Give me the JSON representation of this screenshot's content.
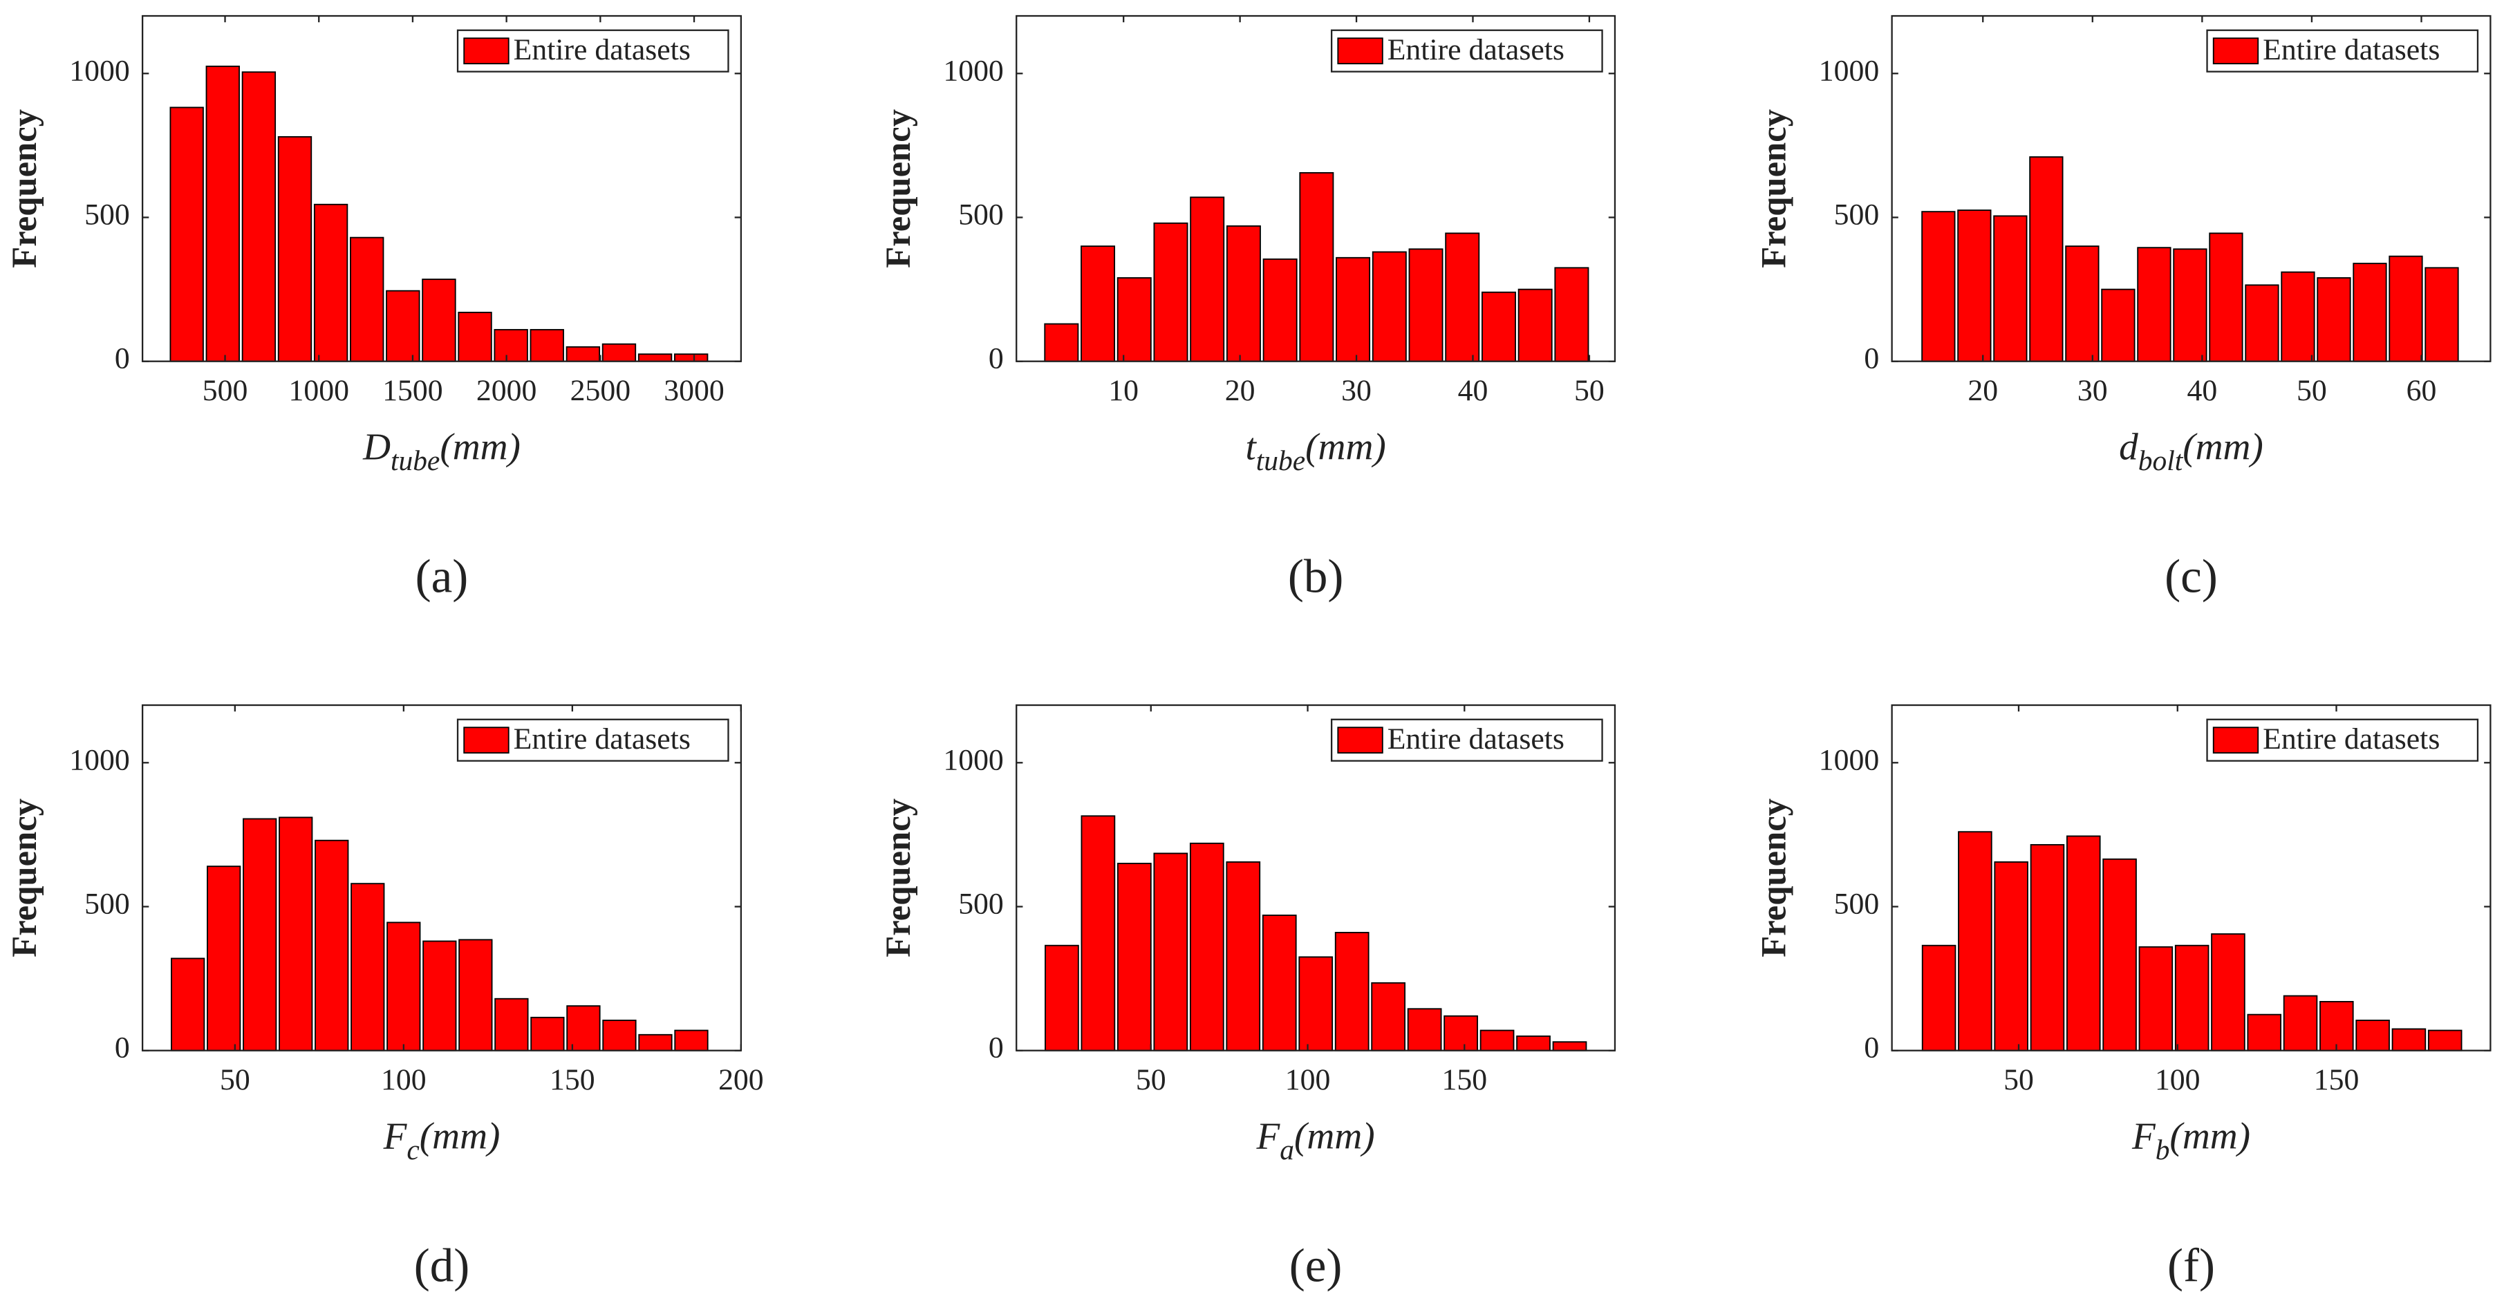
{
  "chart_data": [
    {
      "type": "histogram",
      "panel": "(a)",
      "ylabel": "Frequency",
      "xlabel": {
        "symbol": "D",
        "subscript": "tube",
        "unit": "(mm)"
      },
      "bins": [
        200,
        392,
        584,
        776,
        968,
        1160,
        1352,
        1544,
        1736,
        1928,
        2120,
        2312,
        2504,
        2696,
        2888,
        3080
      ],
      "counts": [
        882,
        1025,
        1005,
        780,
        545,
        430,
        245,
        285,
        170,
        110,
        110,
        50,
        60,
        25,
        25
      ],
      "color": "#ff0000",
      "legend_label": "Entire datasets",
      "legend_loc": "upper right",
      "xlim": [
        60,
        3250
      ],
      "xticks": [
        500,
        1000,
        1500,
        2000,
        2500,
        3000
      ],
      "ylim": [
        0,
        1200
      ],
      "yticks": [
        0,
        500,
        1000
      ]
    },
    {
      "type": "histogram",
      "panel": "(b)",
      "ylabel": "Frequency",
      "xlabel": {
        "symbol": "t",
        "subscript": "tube",
        "unit": "(mm)"
      },
      "bins": [
        3.1,
        6.23,
        9.36,
        12.49,
        15.62,
        18.75,
        21.88,
        25.01,
        28.14,
        31.27,
        34.4,
        37.53,
        40.66,
        43.79,
        46.92,
        50.05
      ],
      "counts": [
        130,
        400,
        290,
        480,
        570,
        470,
        355,
        655,
        360,
        380,
        390,
        445,
        240,
        250,
        325
      ],
      "color": "#ff0000",
      "legend_label": "Entire datasets",
      "legend_loc": "upper right",
      "xlim": [
        0.8,
        52.2
      ],
      "xticks": [
        10,
        20,
        30,
        40,
        50
      ],
      "ylim": [
        0,
        1200
      ],
      "yticks": [
        0,
        500,
        1000
      ]
    },
    {
      "type": "histogram",
      "panel": "(c)",
      "ylabel": "Frequency",
      "xlabel": {
        "symbol": "d",
        "subscript": "bolt",
        "unit": "(mm)"
      },
      "bins": [
        14.3,
        17.58,
        20.86,
        24.14,
        27.42,
        30.7,
        33.98,
        37.26,
        40.54,
        43.82,
        47.1,
        50.38,
        53.66,
        56.94,
        60.22,
        63.5
      ],
      "counts": [
        520,
        525,
        505,
        710,
        400,
        250,
        395,
        390,
        445,
        265,
        310,
        290,
        340,
        365,
        325
      ],
      "color": "#ff0000",
      "legend_label": "Entire datasets",
      "legend_loc": "upper right",
      "xlim": [
        11.7,
        66.3
      ],
      "xticks": [
        20,
        30,
        40,
        50,
        60
      ],
      "ylim": [
        0,
        1200
      ],
      "yticks": [
        0,
        500,
        1000
      ]
    },
    {
      "type": "histogram",
      "panel": "(d)",
      "ylabel": "Frequency",
      "xlabel": {
        "symbol": "F",
        "subscript": "c",
        "unit": "(mm)"
      },
      "bins": [
        30.7,
        41.36,
        52.02,
        62.68,
        73.34,
        84,
        94.66,
        105.32,
        115.98,
        126.64,
        137.3,
        147.96,
        158.62,
        169.28,
        179.94,
        190.6
      ],
      "counts": [
        320,
        640,
        805,
        810,
        730,
        580,
        445,
        380,
        385,
        180,
        115,
        155,
        105,
        55,
        70
      ],
      "color": "#ff0000",
      "legend_label": "Entire datasets",
      "legend_loc": "upper right",
      "xlim": [
        22.6,
        200
      ],
      "xticks": [
        50,
        100,
        150,
        200
      ],
      "ylim": [
        0,
        1200
      ],
      "yticks": [
        0,
        500,
        1000
      ]
    },
    {
      "type": "histogram",
      "panel": "(e)",
      "ylabel": "Frequency",
      "xlabel": {
        "symbol": "F",
        "subscript": "a",
        "unit": "(mm)"
      },
      "bins": [
        15.8,
        27.37,
        38.94,
        50.51,
        62.08,
        73.65,
        85.22,
        96.79,
        108.36,
        119.93,
        131.5,
        143.07,
        154.64,
        166.21,
        177.78,
        189.35
      ],
      "counts": [
        365,
        815,
        650,
        685,
        720,
        655,
        470,
        325,
        410,
        235,
        145,
        120,
        70,
        50,
        30
      ],
      "color": "#ff0000",
      "legend_label": "Entire datasets",
      "legend_loc": "upper right",
      "xlim": [
        7.1,
        198
      ],
      "xticks": [
        50,
        100,
        150
      ],
      "ylim": [
        0,
        1200
      ],
      "yticks": [
        0,
        500,
        1000
      ]
    },
    {
      "type": "histogram",
      "panel": "(f)",
      "ylabel": "Frequency",
      "xlabel": {
        "symbol": "F",
        "subscript": "b",
        "unit": "(mm)"
      },
      "bins": [
        19.2,
        30.58,
        41.96,
        53.34,
        64.72,
        76.1,
        87.48,
        98.86,
        110.24,
        121.62,
        133,
        144.38,
        155.76,
        167.14,
        178.52,
        189.9
      ],
      "counts": [
        365,
        760,
        655,
        715,
        745,
        665,
        360,
        365,
        405,
        125,
        190,
        170,
        105,
        75,
        70
      ],
      "color": "#ff0000",
      "legend_label": "Entire datasets",
      "legend_loc": "upper right",
      "xlim": [
        10.1,
        198.5
      ],
      "xticks": [
        50,
        100,
        150
      ],
      "ylim": [
        0,
        1200
      ],
      "yticks": [
        0,
        500,
        1000
      ]
    }
  ]
}
